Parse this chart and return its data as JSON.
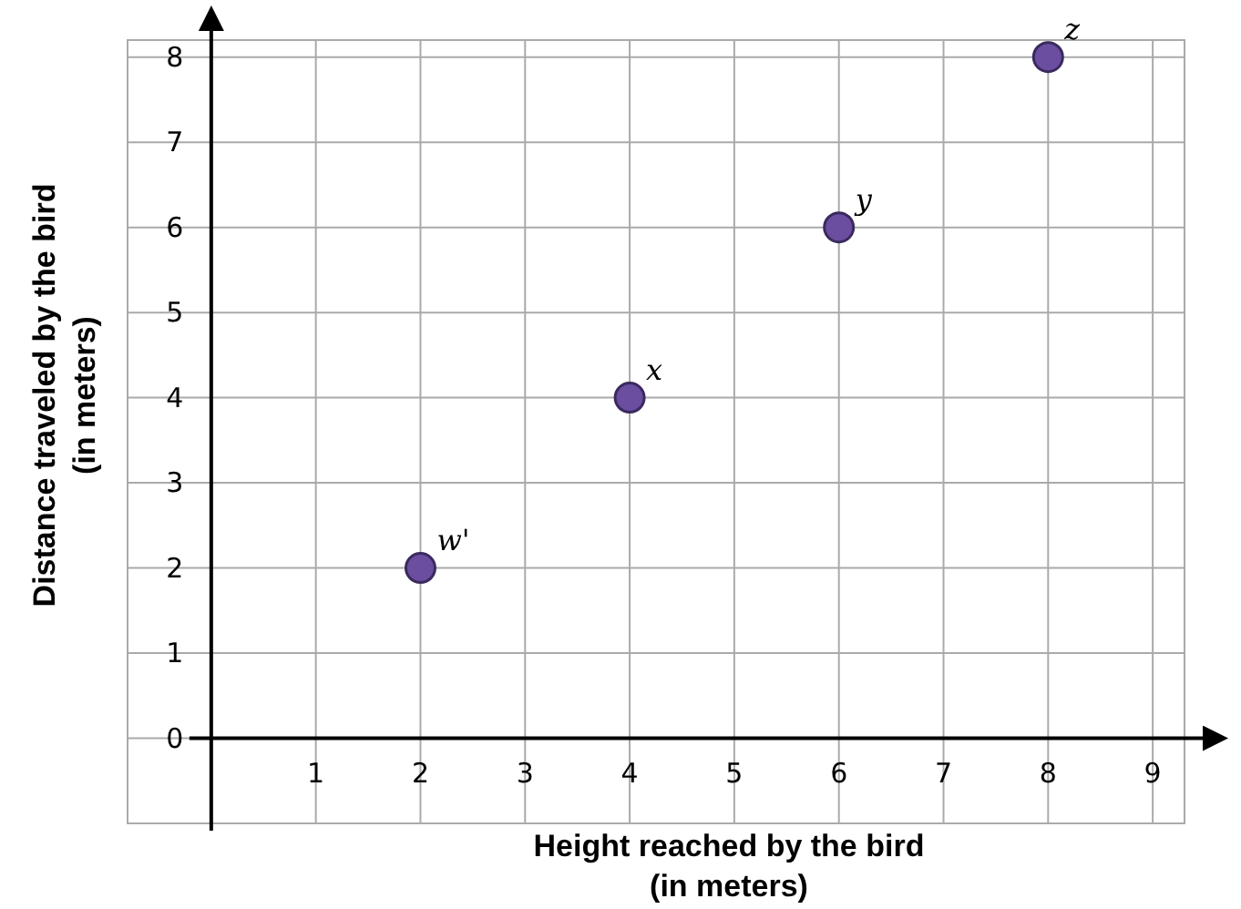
{
  "chart_data": {
    "type": "scatter",
    "xlabel": "Height reached by the bird (in meters)",
    "ylabel": "Distance traveled by the bird (in meters)",
    "x": [
      2,
      4,
      6,
      8
    ],
    "values": [
      2,
      4,
      6,
      8
    ],
    "color": "#6b4ea0",
    "marker": "circle",
    "xlim": [
      -0.8,
      9.6
    ],
    "ylim": [
      -1,
      8.2
    ],
    "xticks": [
      1,
      2,
      3,
      4,
      5,
      6,
      7,
      8,
      9
    ],
    "yticks": [
      0,
      1,
      2,
      3,
      4,
      5,
      6,
      7,
      8
    ],
    "grid": true,
    "annotations": [
      {
        "text": "w'",
        "x": 2,
        "y": 2
      },
      {
        "text": "x",
        "x": 4,
        "y": 4
      },
      {
        "text": "y",
        "x": 6,
        "y": 6
      },
      {
        "text": "z",
        "x": 8,
        "y": 8
      }
    ]
  }
}
